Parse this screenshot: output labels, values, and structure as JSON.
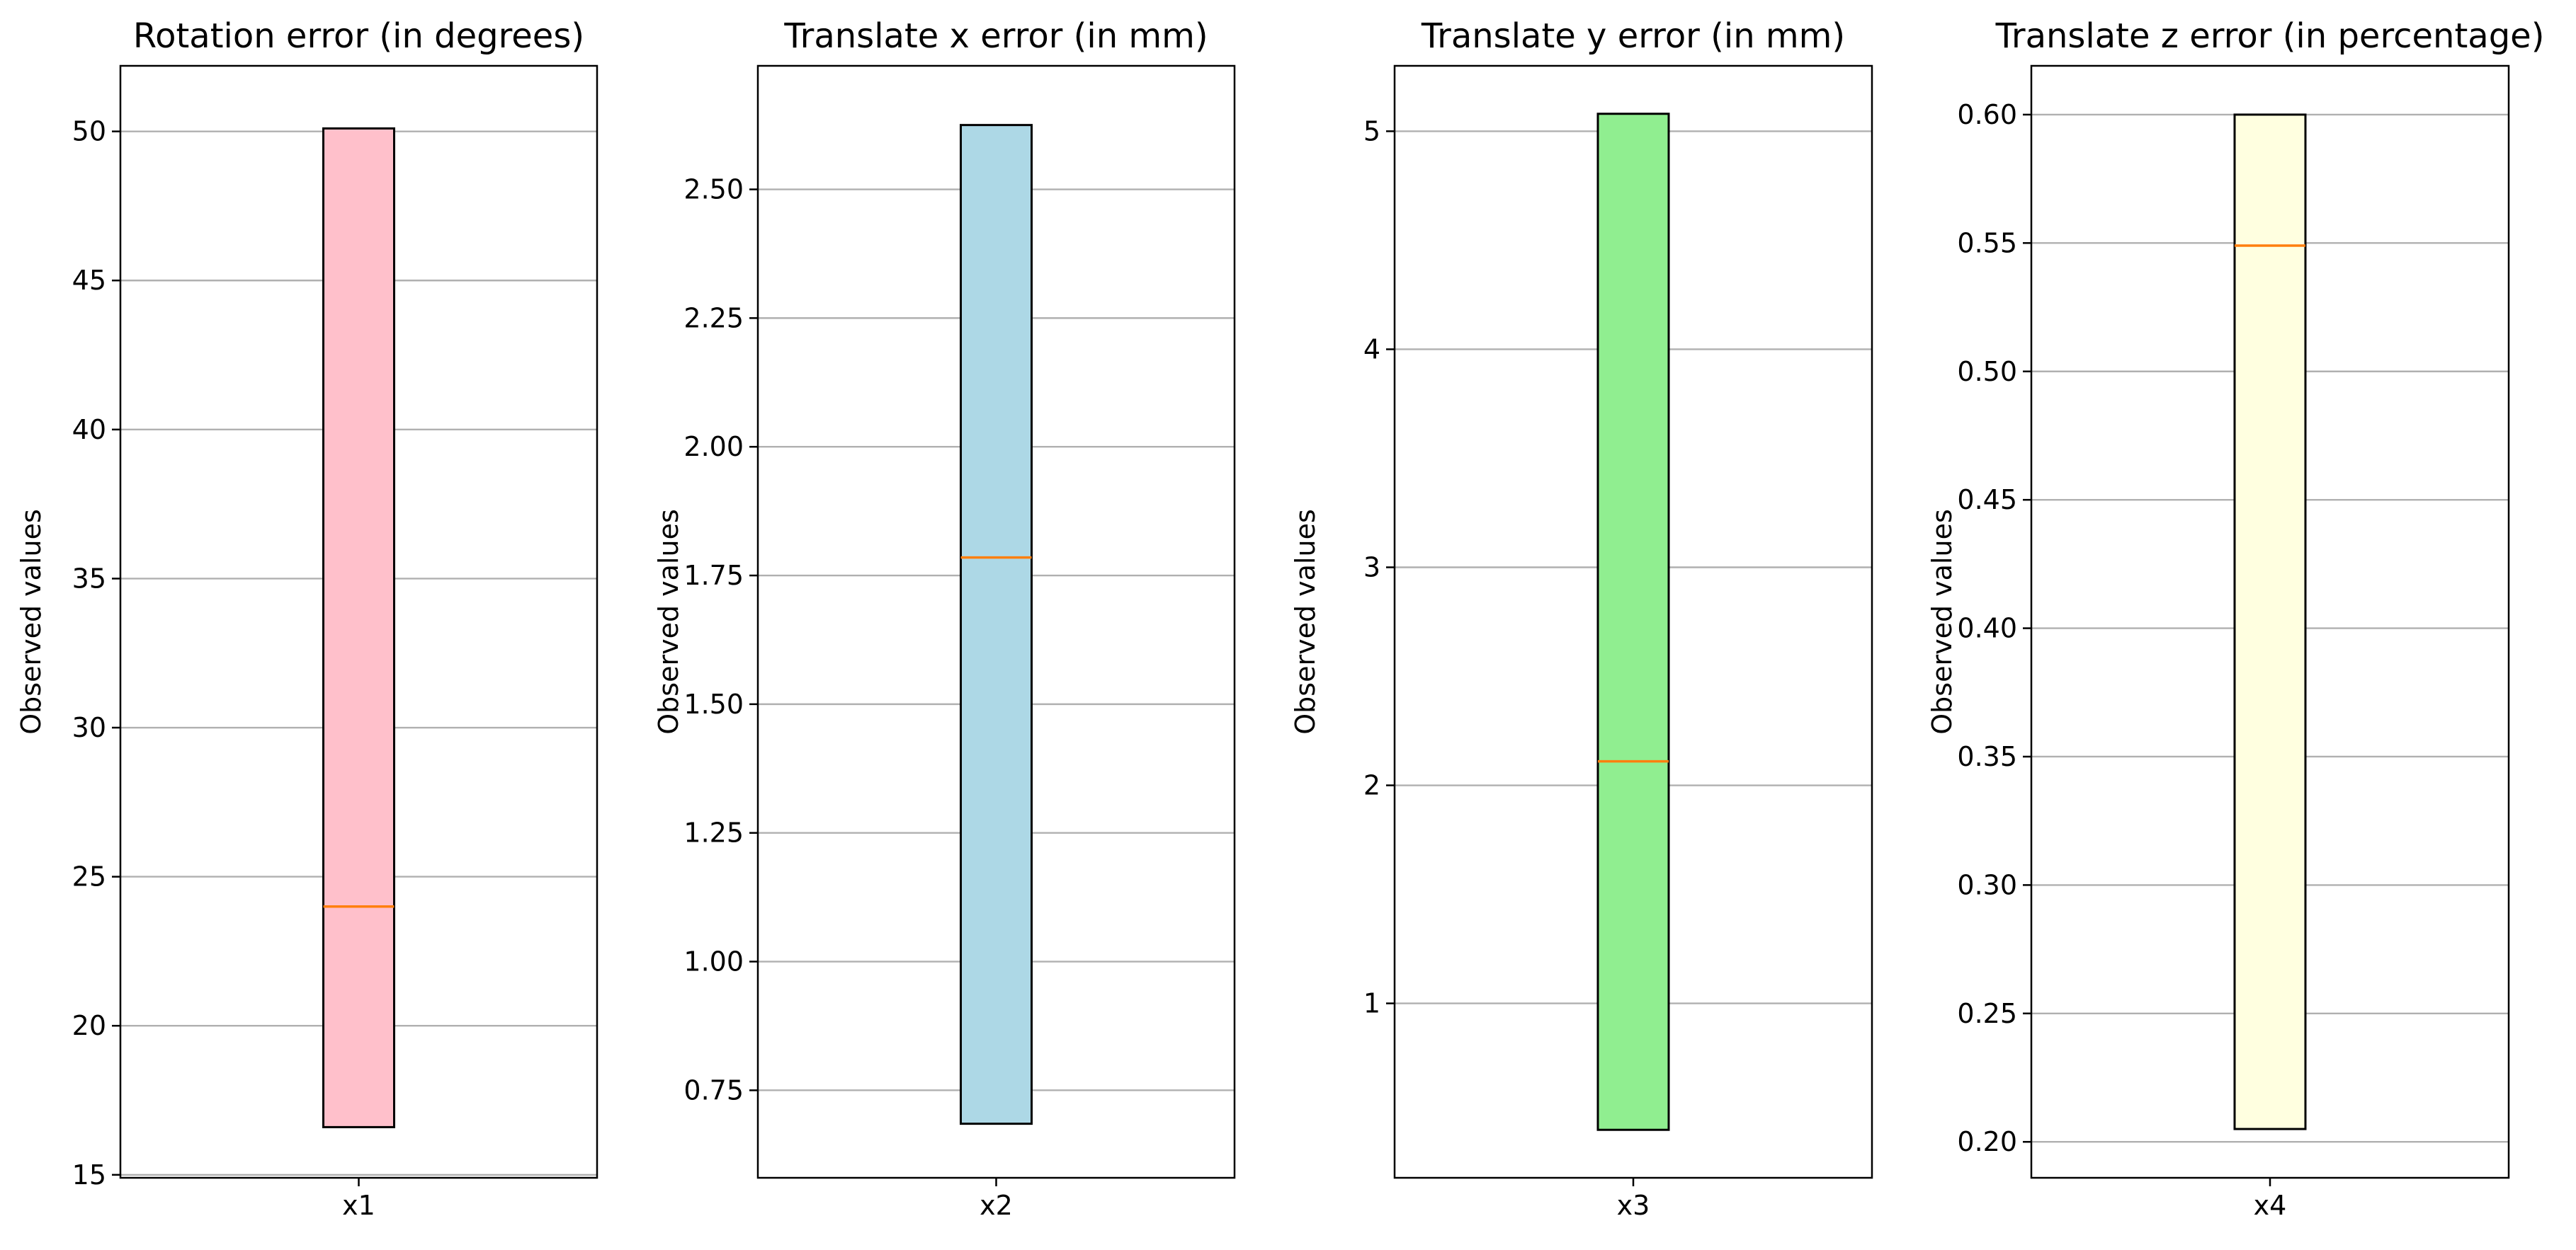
{
  "chart_data": [
    {
      "type": "box",
      "title": "Rotation error (in degrees)",
      "ylabel": "Observed values",
      "categories": [
        "x1"
      ],
      "ylim": [
        14.9,
        52.2
      ],
      "yticks": [
        15,
        20,
        25,
        30,
        35,
        40,
        45,
        50
      ],
      "ytick_labels": [
        "15",
        "20",
        "25",
        "30",
        "35",
        "40",
        "45",
        "50"
      ],
      "box": {
        "q1": 16.6,
        "q3": 50.1,
        "median": 24.0
      },
      "fill": "#ffc0cb",
      "grid": "y"
    },
    {
      "type": "box",
      "title": "Translate x error (in mm)",
      "ylabel": "Observed values",
      "categories": [
        "x2"
      ],
      "ylim": [
        0.58,
        2.74
      ],
      "yticks": [
        0.75,
        1.0,
        1.25,
        1.5,
        1.75,
        2.0,
        2.25,
        2.5
      ],
      "ytick_labels": [
        "0.75",
        "1.00",
        "1.25",
        "1.50",
        "1.75",
        "2.00",
        "2.25",
        "2.50"
      ],
      "box": {
        "q1": 0.685,
        "q3": 2.625,
        "median": 1.785
      },
      "fill": "#add8e6",
      "grid": "y"
    },
    {
      "type": "box",
      "title": "Translate y error (in mm)",
      "ylabel": "Observed values",
      "categories": [
        "x3"
      ],
      "ylim": [
        0.2,
        5.3
      ],
      "yticks": [
        1,
        2,
        3,
        4,
        5
      ],
      "ytick_labels": [
        "1",
        "2",
        "3",
        "4",
        "5"
      ],
      "box": {
        "q1": 0.42,
        "q3": 5.08,
        "median": 2.11
      },
      "fill": "#90ee90",
      "grid": "y"
    },
    {
      "type": "box",
      "title": "Translate z error (in percentage)",
      "ylabel": "Observed values",
      "categories": [
        "x4"
      ],
      "ylim": [
        0.186,
        0.619
      ],
      "yticks": [
        0.2,
        0.25,
        0.3,
        0.35,
        0.4,
        0.45,
        0.5,
        0.55,
        0.6
      ],
      "ytick_labels": [
        "0.20",
        "0.25",
        "0.30",
        "0.35",
        "0.40",
        "0.45",
        "0.50",
        "0.55",
        "0.60"
      ],
      "box": {
        "q1": 0.205,
        "q3": 0.6,
        "median": 0.549
      },
      "fill": "#ffffe0",
      "grid": "y"
    }
  ],
  "style": {
    "median_color": "#ff7f0e",
    "grid_color": "#b0b0b0",
    "edge_color": "#000000"
  }
}
